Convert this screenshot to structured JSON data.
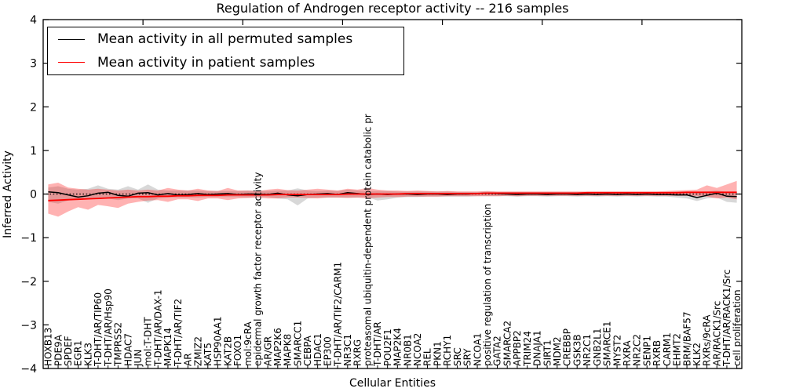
{
  "title": "Regulation of Androgen receptor activity -- 216 samples",
  "axes": {
    "xlabel": "Cellular Entities",
    "ylabel": "Inferred Activity",
    "ytick_labels": [
      "4",
      "3",
      "2",
      "1",
      "0",
      "−1",
      "−2",
      "−3",
      "−4"
    ],
    "ytick_values": [
      4,
      3,
      2,
      1,
      0,
      -1,
      -2,
      -3,
      -4
    ],
    "xtick_top_values": [
      10,
      20,
      30,
      40,
      50,
      60
    ],
    "ylim": [
      -4,
      4
    ],
    "xlim": [
      0,
      70
    ]
  },
  "legend": {
    "items": [
      {
        "label": "Mean activity in all permuted samples",
        "color": "#000000"
      },
      {
        "label": "Mean activity in patient samples",
        "color": "#ff0000"
      }
    ]
  },
  "chart_data": {
    "type": "line",
    "title": "Regulation of Androgen receptor activity -- 216 samples",
    "xlabel": "Cellular Entities",
    "ylabel": "Inferred Activity",
    "ylim": [
      -4,
      4
    ],
    "legend_position": "upper left",
    "grid": false,
    "zero_reference_line": {
      "y": 0,
      "style": "dotted",
      "color": "#000000"
    },
    "categories": [
      "HOXB13",
      "PDE9A",
      "SPDEF",
      "EGR1",
      "KLK3",
      "T-DHT/AR/TIP60",
      "T-DHT/AR/Hsp90",
      "TMPRSS2",
      "HDAC7",
      "JUN",
      "mol:T-DHT",
      "T-DHT/AR/DAX-1",
      "MAPK14",
      "T-DHT/AR/TIF2",
      "AR",
      "ZMIZ2",
      "KAT5",
      "HSP90AA1",
      "KAT2B",
      "FOXO1",
      "mol:9cRA",
      "epidermal growth factor receptor activity",
      "AR/GR",
      "MAP2K6",
      "MAPK8",
      "SMARCC1",
      "CEBPA",
      "HDAC1",
      "EP300",
      "T-DHT/AR/TIF2/CARM1",
      "NR3C1",
      "RXRG",
      "proteasomal ubiquitin-dependent protein catabolic pr",
      "T-DHT/AR",
      "POU2F1",
      "MAP2K4",
      "NR0B1",
      "NCOA2",
      "REL",
      "PKN1",
      "RCHY1",
      "SRC",
      "SRY",
      "NCOA1",
      "positive regulation of transcription",
      "GATA2",
      "SMARCA2",
      "APPBP2",
      "TRIM24",
      "DNAJA1",
      "SIRT1",
      "MDM2",
      "CREBBP",
      "GSK3B",
      "NR2C1",
      "GNB2L1",
      "SMARCE1",
      "MYST2",
      "RXRA",
      "NR2C2",
      "SENP1",
      "RXRB",
      "CARM1",
      "EHMT2",
      "BRM/BAF57",
      "KLK2",
      "RXRs/9cRA",
      "AR/RACK1/Src",
      "T-DHT/AR/RACK1/Src",
      "cell proliferation"
    ],
    "series": [
      {
        "name": "Mean activity in all permuted samples",
        "color": "#000000",
        "band_color": "#999999",
        "band_opacity": 0.38,
        "values": [
          0.05,
          0.03,
          -0.02,
          -0.07,
          -0.04,
          0.02,
          0.04,
          -0.03,
          -0.05,
          0.02,
          0.03,
          -0.02,
          0.01,
          -0.02,
          -0.01,
          0.01,
          -0.01,
          0.0,
          0.01,
          -0.01,
          0.0,
          0.0,
          -0.01,
          0.02,
          -0.02,
          -0.04,
          -0.01,
          0.0,
          0.01,
          -0.01,
          0.03,
          0.01,
          -0.01,
          0.0,
          -0.01,
          0.0,
          0.0,
          -0.01,
          0.0,
          0.0,
          -0.01,
          0.0,
          0.0,
          0.01,
          0.02,
          0.01,
          0.0,
          -0.01,
          0.0,
          0.0,
          -0.01,
          0.0,
          0.0,
          -0.01,
          0.0,
          -0.01,
          0.0,
          -0.01,
          0.0,
          -0.01,
          0.0,
          -0.01,
          -0.01,
          -0.02,
          -0.02,
          -0.08,
          -0.03,
          0.02,
          -0.05,
          -0.06
        ],
        "band_upper": [
          0.15,
          0.18,
          0.12,
          0.1,
          0.12,
          0.2,
          0.12,
          0.1,
          0.18,
          0.1,
          0.22,
          0.1,
          0.08,
          0.08,
          0.08,
          0.08,
          0.07,
          0.07,
          0.07,
          0.07,
          0.08,
          0.07,
          0.07,
          0.08,
          0.08,
          0.13,
          0.08,
          0.07,
          0.08,
          0.07,
          0.1,
          0.08,
          0.07,
          0.07,
          0.07,
          0.06,
          0.06,
          0.06,
          0.06,
          0.06,
          0.06,
          0.05,
          0.05,
          0.05,
          0.06,
          0.05,
          0.05,
          0.05,
          0.05,
          0.05,
          0.05,
          0.05,
          0.05,
          0.05,
          0.05,
          0.05,
          0.05,
          0.05,
          0.05,
          0.05,
          0.05,
          0.05,
          0.05,
          0.06,
          0.06,
          0.05,
          0.06,
          0.08,
          0.05,
          0.06
        ],
        "band_lower": [
          -0.18,
          -0.22,
          -0.15,
          -0.12,
          -0.1,
          -0.12,
          -0.1,
          -0.14,
          -0.1,
          -0.1,
          -0.2,
          -0.1,
          -0.08,
          -0.08,
          -0.08,
          -0.08,
          -0.07,
          -0.07,
          -0.07,
          -0.07,
          -0.08,
          -0.07,
          -0.07,
          -0.1,
          -0.12,
          -0.26,
          -0.1,
          -0.08,
          -0.08,
          -0.08,
          -0.08,
          -0.08,
          -0.07,
          -0.15,
          -0.12,
          -0.08,
          -0.07,
          -0.07,
          -0.06,
          -0.06,
          -0.06,
          -0.06,
          -0.06,
          -0.05,
          -0.05,
          -0.05,
          -0.05,
          -0.06,
          -0.05,
          -0.05,
          -0.06,
          -0.05,
          -0.05,
          -0.06,
          -0.05,
          -0.06,
          -0.05,
          -0.06,
          -0.05,
          -0.06,
          -0.05,
          -0.06,
          -0.06,
          -0.08,
          -0.1,
          -0.16,
          -0.1,
          -0.08,
          -0.18,
          -0.2
        ]
      },
      {
        "name": "Mean activity in patient samples",
        "color": "#ff0000",
        "band_color": "#ff0000",
        "band_opacity": 0.3,
        "values": [
          -0.15,
          -0.14,
          -0.13,
          -0.12,
          -0.11,
          -0.1,
          -0.09,
          -0.08,
          -0.07,
          -0.06,
          -0.06,
          -0.05,
          -0.05,
          -0.04,
          -0.04,
          -0.03,
          -0.03,
          -0.03,
          -0.02,
          -0.02,
          -0.02,
          -0.02,
          -0.02,
          -0.01,
          -0.01,
          -0.01,
          -0.01,
          -0.01,
          -0.01,
          -0.01,
          0.0,
          0.0,
          0.0,
          0.0,
          0.0,
          0.0,
          0.01,
          0.01,
          0.01,
          0.01,
          0.01,
          0.01,
          0.01,
          0.01,
          0.02,
          0.02,
          0.02,
          0.02,
          0.02,
          0.02,
          0.02,
          0.02,
          0.02,
          0.02,
          0.03,
          0.03,
          0.03,
          0.03,
          0.03,
          0.03,
          0.03,
          0.03,
          0.03,
          0.03,
          0.04,
          0.04,
          0.04,
          0.04,
          0.04,
          0.04
        ],
        "band_upper": [
          0.22,
          0.26,
          0.15,
          0.12,
          0.1,
          0.12,
          0.1,
          0.08,
          0.1,
          0.08,
          0.1,
          0.08,
          0.14,
          0.1,
          0.08,
          0.12,
          0.08,
          0.07,
          0.14,
          0.08,
          0.08,
          0.07,
          0.1,
          0.12,
          0.09,
          0.08,
          0.1,
          0.12,
          0.1,
          0.08,
          0.12,
          0.1,
          0.14,
          0.1,
          0.08,
          0.08,
          0.07,
          0.08,
          0.07,
          0.06,
          0.07,
          0.06,
          0.06,
          0.06,
          0.07,
          0.06,
          0.06,
          0.06,
          0.06,
          0.06,
          0.06,
          0.06,
          0.06,
          0.06,
          0.06,
          0.06,
          0.06,
          0.06,
          0.06,
          0.06,
          0.06,
          0.06,
          0.07,
          0.08,
          0.09,
          0.1,
          0.2,
          0.14,
          0.22,
          0.3
        ],
        "band_lower": [
          -0.45,
          -0.52,
          -0.4,
          -0.3,
          -0.36,
          -0.25,
          -0.28,
          -0.32,
          -0.22,
          -0.18,
          -0.15,
          -0.14,
          -0.18,
          -0.12,
          -0.12,
          -0.16,
          -0.1,
          -0.1,
          -0.14,
          -0.1,
          -0.09,
          -0.08,
          -0.1,
          -0.1,
          -0.08,
          -0.08,
          -0.09,
          -0.1,
          -0.08,
          -0.08,
          -0.09,
          -0.08,
          -0.1,
          -0.08,
          -0.07,
          -0.07,
          -0.06,
          -0.06,
          -0.06,
          -0.06,
          -0.05,
          -0.05,
          -0.05,
          -0.05,
          -0.05,
          -0.05,
          -0.04,
          -0.05,
          -0.04,
          -0.04,
          -0.04,
          -0.04,
          -0.04,
          -0.04,
          -0.04,
          -0.04,
          -0.04,
          -0.04,
          -0.04,
          -0.04,
          -0.04,
          -0.04,
          -0.04,
          -0.04,
          -0.04,
          -0.05,
          -0.06,
          -0.1,
          -0.08,
          -0.12
        ]
      }
    ]
  }
}
